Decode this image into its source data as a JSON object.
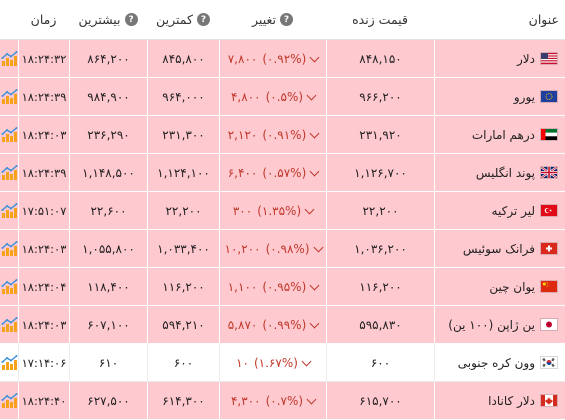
{
  "header": {
    "name": "عنوان",
    "price": "قیمت زنده",
    "change": "تغییر",
    "low": "کمترین",
    "high": "بیشترین",
    "time": "زمان"
  },
  "colors": {
    "highlight_row": "#ffc9d0",
    "negative": "#c0392b",
    "chart_orange": "#f7a21b",
    "chart_blue": "#3a8fd8"
  },
  "rows": [
    {
      "name": "دلار",
      "flag": "us-flag",
      "price": "۸۴۸,۱۵۰",
      "change": "۷,۸۰۰",
      "pct": "(۰.۹۲%)",
      "low": "۸۴۵,۸۰۰",
      "high": "۸۶۴,۲۰۰",
      "time": "۱۸:۲۴:۳۲",
      "chart": "chart-icon"
    },
    {
      "name": "یورو",
      "flag": "eu-flag",
      "price": "۹۶۶,۲۰۰",
      "change": "۴,۸۰۰",
      "pct": "(۰.۵%)",
      "low": "۹۶۴,۰۰۰",
      "high": "۹۸۴,۹۰۰",
      "time": "۱۸:۲۴:۳۹",
      "chart": "chart-icon"
    },
    {
      "name": "درهم امارات",
      "flag": "ae-flag",
      "price": "۲۳۱,۹۲۰",
      "change": "۲,۱۲۰",
      "pct": "(۰.۹۱%)",
      "low": "۲۳۱,۳۰۰",
      "high": "۲۳۶,۲۹۰",
      "time": "۱۸:۲۴:۰۳",
      "chart": "chart-icon"
    },
    {
      "name": "پوند انگلیس",
      "flag": "gb-flag",
      "price": "۱,۱۲۶,۷۰۰",
      "change": "۶,۴۰۰",
      "pct": "(۰.۵۷%)",
      "low": "۱,۱۲۴,۱۰۰",
      "high": "۱,۱۴۸,۵۰۰",
      "time": "۱۸:۲۴:۳۹",
      "chart": "chart-icon"
    },
    {
      "name": "لیر ترکیه",
      "flag": "tr-flag",
      "price": "۲۲,۲۰۰",
      "change": "۳۰۰",
      "pct": "(۱.۳۵%)",
      "low": "۲۲,۲۰۰",
      "high": "۲۲,۶۰۰",
      "time": "۱۷:۵۱:۰۷",
      "chart": "chart-icon"
    },
    {
      "name": "فرانک سوئیس",
      "flag": "ch-flag",
      "price": "۱,۰۳۶,۲۰۰",
      "change": "۱۰,۲۰۰",
      "pct": "(۰.۹۸%)",
      "low": "۱,۰۳۳,۴۰۰",
      "high": "۱,۰۵۵,۸۰۰",
      "time": "۱۸:۲۴:۰۳",
      "chart": "chart-icon"
    },
    {
      "name": "یوان چین",
      "flag": "cn-flag",
      "price": "۱۱۶,۲۰۰",
      "change": "۱,۱۰۰",
      "pct": "(۰.۹۵%)",
      "low": "۱۱۶,۲۰۰",
      "high": "۱۱۸,۴۰۰",
      "time": "۱۸:۲۴:۰۴",
      "chart": "chart-icon"
    },
    {
      "name": "ین ژاپن (۱۰۰ ین)",
      "flag": "jp-flag",
      "price": "۵۹۵,۸۳۰",
      "change": "۵,۸۷۰",
      "pct": "(۰.۹۹%)",
      "low": "۵۹۴,۲۱۰",
      "high": "۶۰۷,۱۰۰",
      "time": "۱۸:۲۴:۰۳",
      "chart": "chart-icon"
    },
    {
      "name": "وون کره جنوبی",
      "flag": "kr-flag",
      "price": "۶۰۰",
      "change": "۱۰",
      "pct": "(۱.۶۷%)",
      "low": "۶۰۰",
      "high": "۶۱۰",
      "time": "۱۷:۱۴:۰۶",
      "chart": "chart-icon",
      "white": true
    },
    {
      "name": "دلار کانادا",
      "flag": "ca-flag",
      "price": "۶۱۵,۷۰۰",
      "change": "۴,۳۰۰",
      "pct": "(۰.۷%)",
      "low": "۶۱۴,۳۰۰",
      "high": "۶۲۷,۵۰۰",
      "time": "۱۸:۲۴:۴۰",
      "chart": "chart-icon"
    }
  ]
}
